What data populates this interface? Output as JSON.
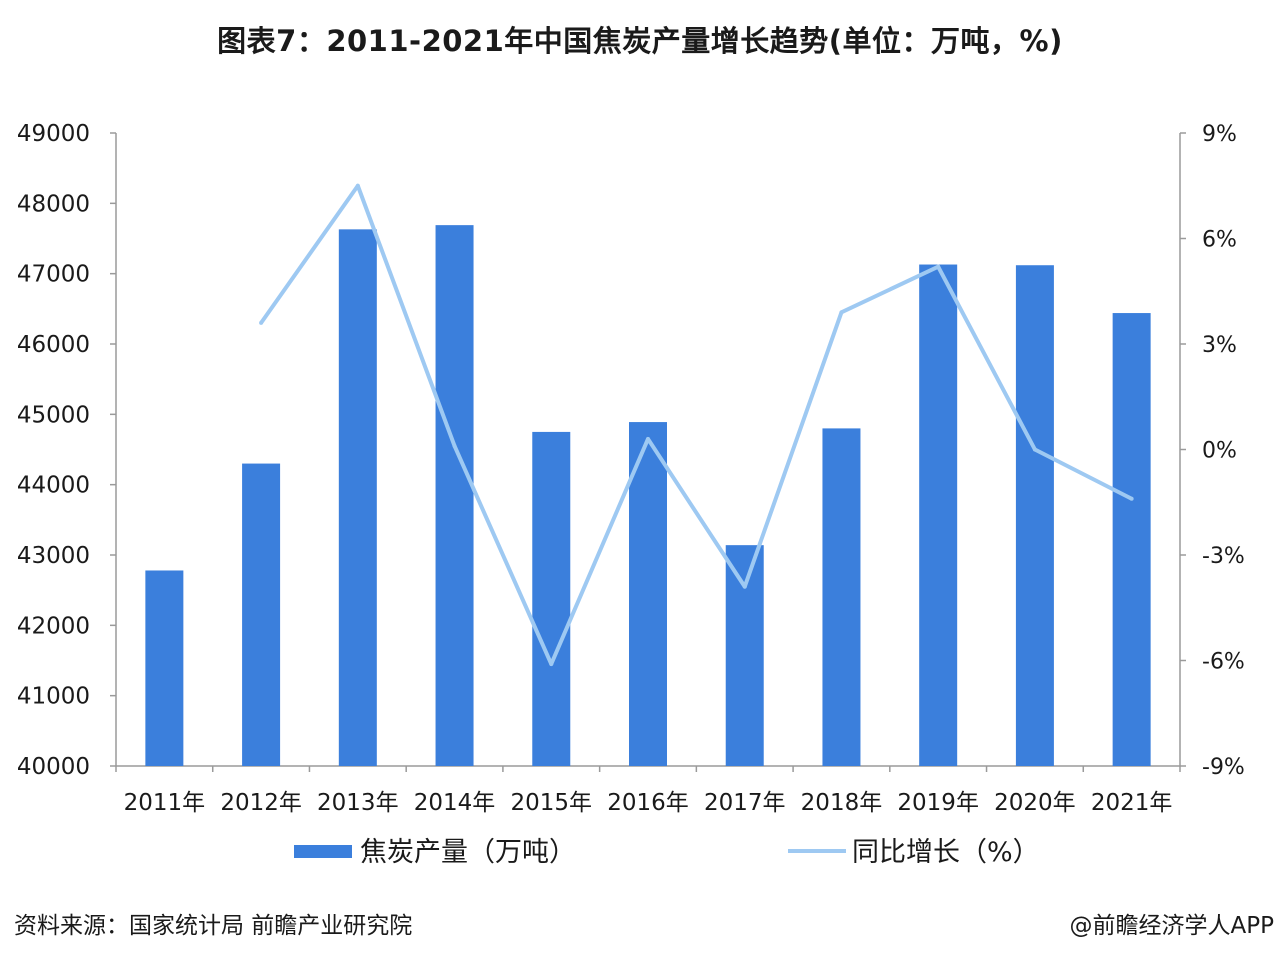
{
  "chart_data": {
    "type": "bar",
    "title": "图表7：2011-2021年中国焦炭产量增长趋势(单位：万吨，%)",
    "categories": [
      "2011年",
      "2012年",
      "2013年",
      "2014年",
      "2015年",
      "2016年",
      "2017年",
      "2018年",
      "2019年",
      "2020年",
      "2021年"
    ],
    "series": [
      {
        "name": "焦炭产量（万吨）",
        "type": "bar",
        "axis": "left",
        "values": [
          42780,
          44300,
          47630,
          47690,
          44750,
          44890,
          43140,
          44800,
          47130,
          47120,
          46440
        ]
      },
      {
        "name": "同比增长（%）",
        "type": "line",
        "axis": "right",
        "values": [
          null,
          3.6,
          7.5,
          0.1,
          -6.1,
          0.3,
          -3.9,
          3.9,
          5.2,
          0.0,
          -1.4
        ]
      }
    ],
    "left_axis": {
      "ylim": [
        40000,
        49000
      ],
      "ticks": [
        "40000",
        "41000",
        "42000",
        "43000",
        "44000",
        "45000",
        "46000",
        "47000",
        "48000",
        "49000"
      ]
    },
    "right_axis": {
      "ylim": [
        -9,
        9
      ],
      "ticks": [
        "-9%",
        "-6%",
        "-3%",
        "0%",
        "3%",
        "6%",
        "9%"
      ]
    },
    "colors": {
      "bar": "#3b7fdc",
      "line": "#9ec9f2",
      "axis": "#9a9a9a"
    },
    "grid": false,
    "legend_position": "bottom"
  },
  "footer": {
    "source": "资料来源：国家统计局 前瞻产业研究院",
    "brand": "@前瞻经济学人APP"
  }
}
